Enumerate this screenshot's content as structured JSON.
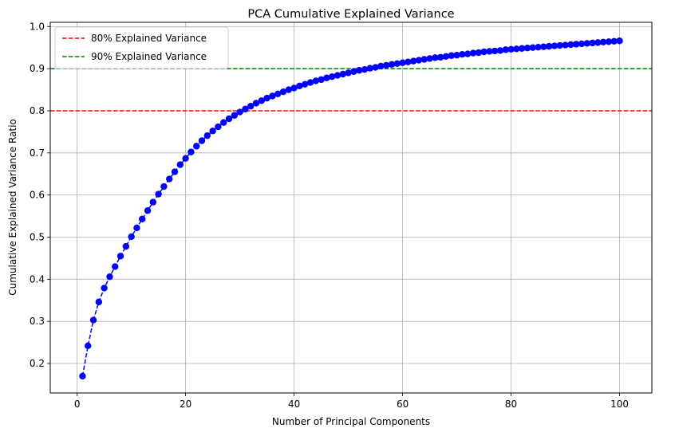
{
  "chart_data": {
    "type": "line",
    "title": "PCA Cumulative Explained Variance",
    "xlabel": "Number of Principal Components",
    "ylabel": "Cumulative Explained Variance Ratio",
    "xlim": [
      -4.95,
      105.95
    ],
    "ylim": [
      0.13,
      1.01
    ],
    "xticks": [
      0,
      20,
      40,
      60,
      80,
      100
    ],
    "yticks": [
      0.2,
      0.3,
      0.4,
      0.5,
      0.6,
      0.7,
      0.8,
      0.9,
      1.0
    ],
    "xtick_labels": [
      "0",
      "20",
      "40",
      "60",
      "80",
      "100"
    ],
    "ytick_labels": [
      "0.2",
      "0.3",
      "0.4",
      "0.5",
      "0.6",
      "0.7",
      "0.8",
      "0.9",
      "1.0"
    ],
    "grid": true,
    "legend_position": "top-left",
    "series": [
      {
        "color": "#0000ff",
        "line_style": "dashed",
        "marker": "circle",
        "x": [
          1,
          2,
          3,
          4,
          5,
          6,
          7,
          8,
          9,
          10,
          11,
          12,
          13,
          14,
          15,
          16,
          17,
          18,
          19,
          20,
          21,
          22,
          23,
          24,
          25,
          26,
          27,
          28,
          29,
          30,
          31,
          32,
          33,
          34,
          35,
          36,
          37,
          38,
          39,
          40,
          41,
          42,
          43,
          44,
          45,
          46,
          47,
          48,
          49,
          50,
          51,
          52,
          53,
          54,
          55,
          56,
          57,
          58,
          59,
          60,
          61,
          62,
          63,
          64,
          65,
          66,
          67,
          68,
          69,
          70,
          71,
          72,
          73,
          74,
          75,
          76,
          77,
          78,
          79,
          80,
          81,
          82,
          83,
          84,
          85,
          86,
          87,
          88,
          89,
          90,
          91,
          92,
          93,
          94,
          95,
          96,
          97,
          98,
          99,
          100
        ],
        "values": [
          0.17,
          0.242,
          0.303,
          0.346,
          0.379,
          0.406,
          0.43,
          0.455,
          0.478,
          0.501,
          0.522,
          0.543,
          0.563,
          0.583,
          0.602,
          0.62,
          0.638,
          0.655,
          0.672,
          0.687,
          0.702,
          0.716,
          0.729,
          0.741,
          0.752,
          0.762,
          0.772,
          0.781,
          0.789,
          0.797,
          0.804,
          0.811,
          0.818,
          0.824,
          0.83,
          0.835,
          0.84,
          0.845,
          0.85,
          0.854,
          0.859,
          0.863,
          0.867,
          0.871,
          0.874,
          0.878,
          0.881,
          0.884,
          0.887,
          0.89,
          0.893,
          0.896,
          0.898,
          0.901,
          0.903,
          0.906,
          0.908,
          0.91,
          0.912,
          0.914,
          0.916,
          0.918,
          0.92,
          0.922,
          0.924,
          0.926,
          0.927,
          0.929,
          0.931,
          0.932,
          0.934,
          0.935,
          0.937,
          0.938,
          0.94,
          0.941,
          0.942,
          0.943,
          0.945,
          0.946,
          0.947,
          0.948,
          0.949,
          0.95,
          0.951,
          0.952,
          0.953,
          0.954,
          0.955,
          0.956,
          0.957,
          0.958,
          0.959,
          0.96,
          0.961,
          0.962,
          0.963,
          0.964,
          0.965,
          0.966
        ]
      }
    ],
    "reference_lines": [
      {
        "name": "80% Explained Variance",
        "y": 0.8,
        "color": "#ff0000",
        "line_style": "dashed"
      },
      {
        "name": "90% Explained Variance",
        "y": 0.9,
        "color": "#008000",
        "line_style": "dashed"
      }
    ]
  }
}
